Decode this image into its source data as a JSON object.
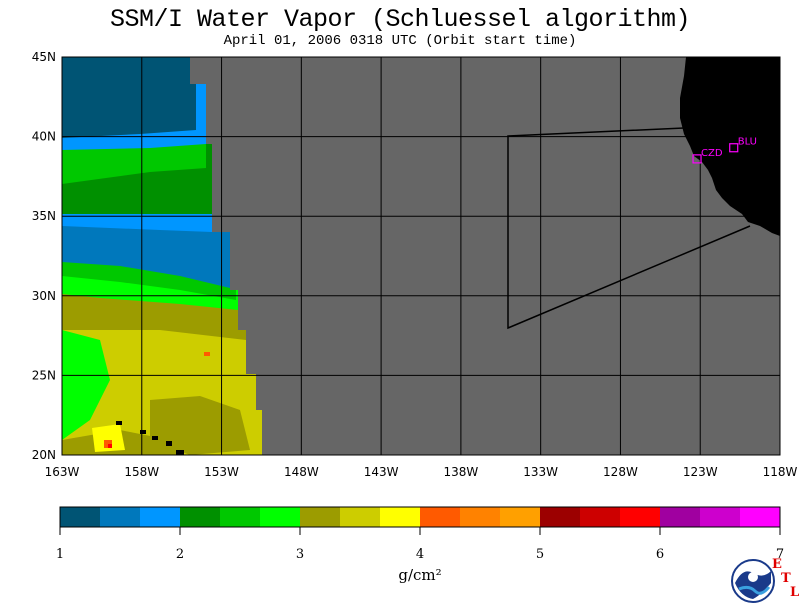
{
  "title": "SSM/I Water Vapor (Schluessel algorithm)",
  "subtitle": "April 01, 2006  0318 UTC  (Orbit start time)",
  "map": {
    "lon_range": [
      -163,
      -118
    ],
    "lat_range": [
      20,
      45
    ],
    "x_ticks": [
      {
        "lon": -163,
        "label": "163W"
      },
      {
        "lon": -158,
        "label": "158W"
      },
      {
        "lon": -153,
        "label": "153W"
      },
      {
        "lon": -148,
        "label": "148W"
      },
      {
        "lon": -143,
        "label": "143W"
      },
      {
        "lon": -138,
        "label": "138W"
      },
      {
        "lon": -133,
        "label": "133W"
      },
      {
        "lon": -128,
        "label": "128W"
      },
      {
        "lon": -123,
        "label": "123W"
      },
      {
        "lon": -118,
        "label": "118W"
      }
    ],
    "y_ticks": [
      {
        "lat": 45,
        "label": "45N"
      },
      {
        "lat": 40,
        "label": "40N"
      },
      {
        "lat": 35,
        "label": "35N"
      },
      {
        "lat": 30,
        "label": "30N"
      },
      {
        "lat": 25,
        "label": "25N"
      },
      {
        "lat": 20,
        "label": "20N"
      }
    ],
    "stations": [
      {
        "id": "CZD",
        "lon": -123.2,
        "lat": 38.6
      },
      {
        "id": "BLU",
        "lon": -120.9,
        "lat": 39.3
      }
    ],
    "colors": {
      "no_data": "#666666",
      "land": "#000000",
      "grid": "#000000",
      "station": "#ff00ff"
    }
  },
  "colorbar": {
    "units": "g/cm²",
    "min": 1,
    "max": 7,
    "tick_labels": [
      "1",
      "2",
      "3",
      "4",
      "5",
      "6",
      "7"
    ],
    "colors": [
      "#005474",
      "#0078bc",
      "#0096ff",
      "#009000",
      "#00c800",
      "#00ff00",
      "#9c9c00",
      "#cdcd00",
      "#ffff00",
      "#ff5a00",
      "#ff8200",
      "#ffa000",
      "#9c0000",
      "#cd0000",
      "#ff0000",
      "#a000a0",
      "#cd00cd",
      "#ff00ff"
    ]
  },
  "logo": {
    "text": "NOAA",
    "etl_letters": [
      "E",
      "T",
      "L"
    ]
  }
}
